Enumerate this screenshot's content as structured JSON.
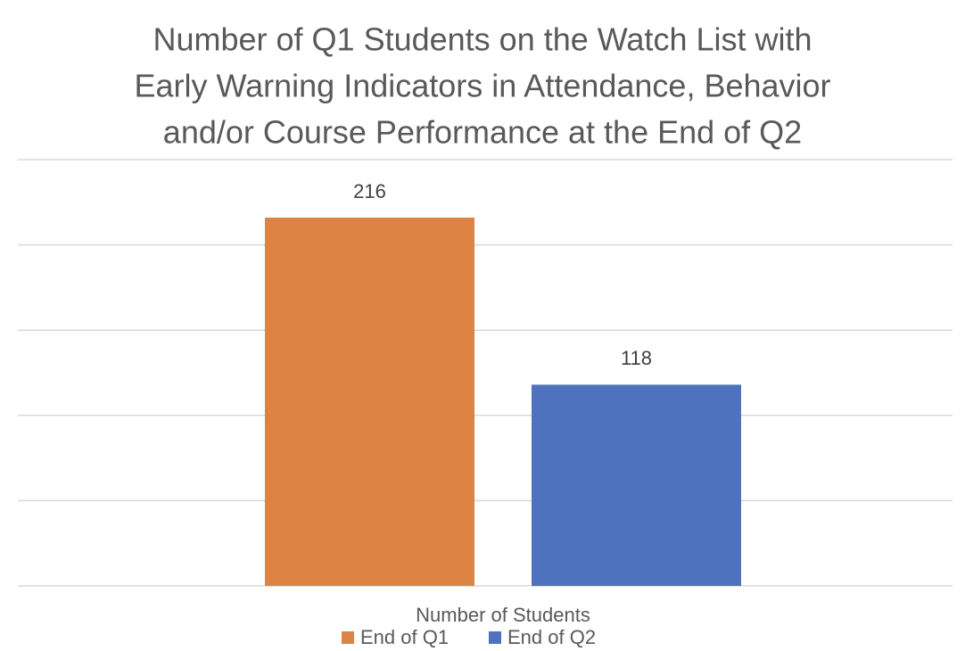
{
  "chart_data": {
    "type": "bar",
    "title": [
      "Number of Q1 Students on the Watch List with",
      "Early Warning Indicators in Attendance, Behavior",
      "and/or Course Performance at the End of Q2"
    ],
    "categories": [
      "Number of Students"
    ],
    "series": [
      {
        "name": "End of Q1",
        "color": "#dd8344",
        "values": [
          216
        ]
      },
      {
        "name": "End of Q2",
        "color": "#4f72be",
        "values": [
          118
        ]
      }
    ],
    "ylim": [
      0,
      250
    ],
    "yticks": [
      0,
      50,
      100,
      150,
      200,
      250
    ],
    "grid": true,
    "legend": "bottom"
  }
}
